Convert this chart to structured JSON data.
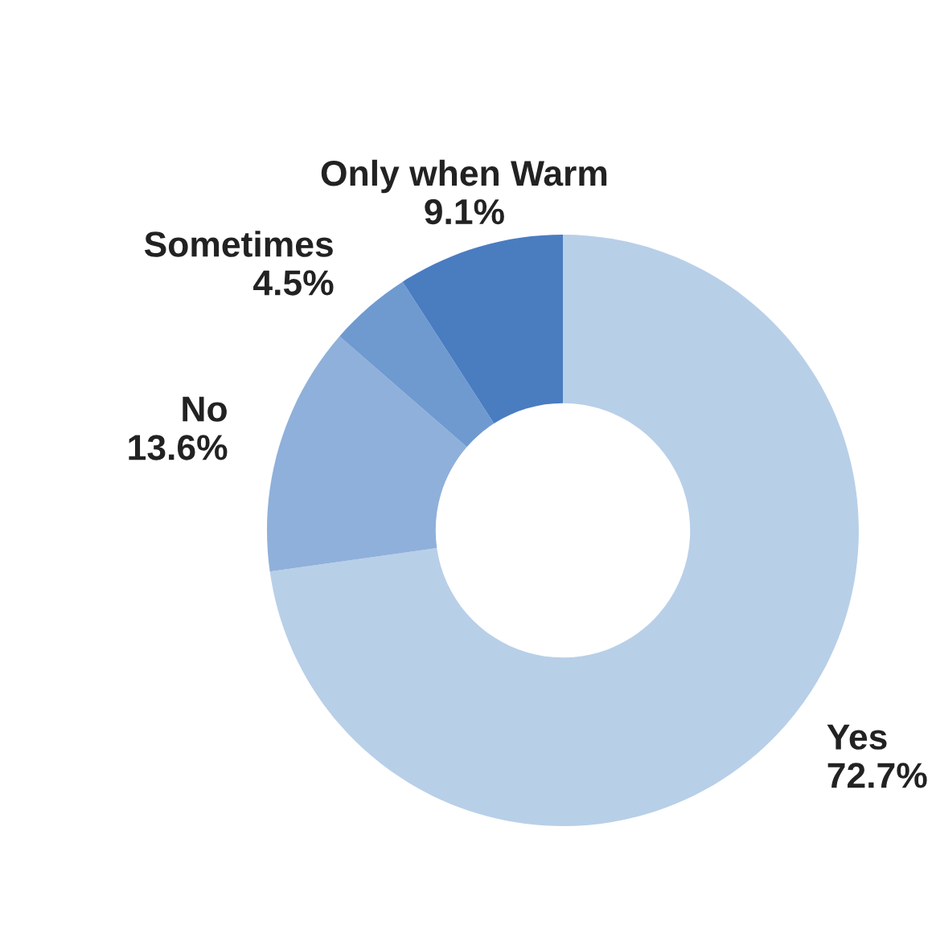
{
  "chart_data": {
    "type": "donut",
    "categories": [
      "Yes",
      "No",
      "Sometimes",
      "Only when Warm"
    ],
    "values": [
      72.7,
      13.6,
      4.5,
      9.1
    ],
    "value_labels": [
      "72.7%",
      "13.6%",
      "4.5%",
      "9.1%"
    ],
    "colors": [
      "#b8cfe8",
      "#8fb0da",
      "#6f9ad0",
      "#4a7cc0"
    ],
    "legend": false
  }
}
